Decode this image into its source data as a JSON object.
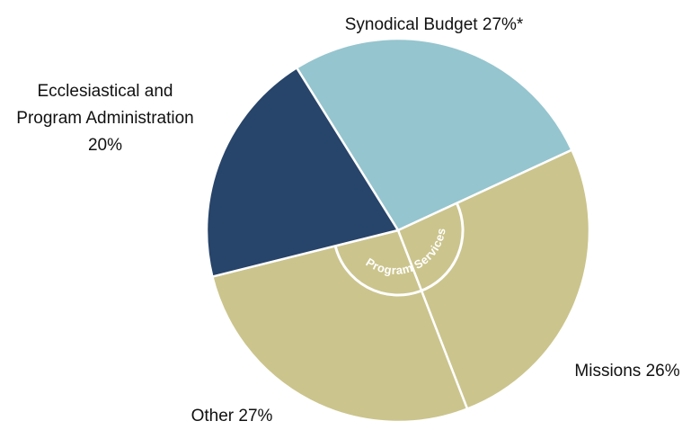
{
  "chart_data": {
    "type": "pie",
    "categories": [
      "Synodical Budget",
      "Missions",
      "Other",
      "Ecclesiastical and Program Administration"
    ],
    "values": [
      27,
      26,
      27,
      20
    ],
    "value_labels": [
      "27%*",
      "26%",
      "27%",
      "20%"
    ],
    "colors": [
      "#95c5cf",
      "#cbc48c",
      "#cbc48c",
      "#27446a"
    ],
    "annotation": "Program Services"
  }
}
